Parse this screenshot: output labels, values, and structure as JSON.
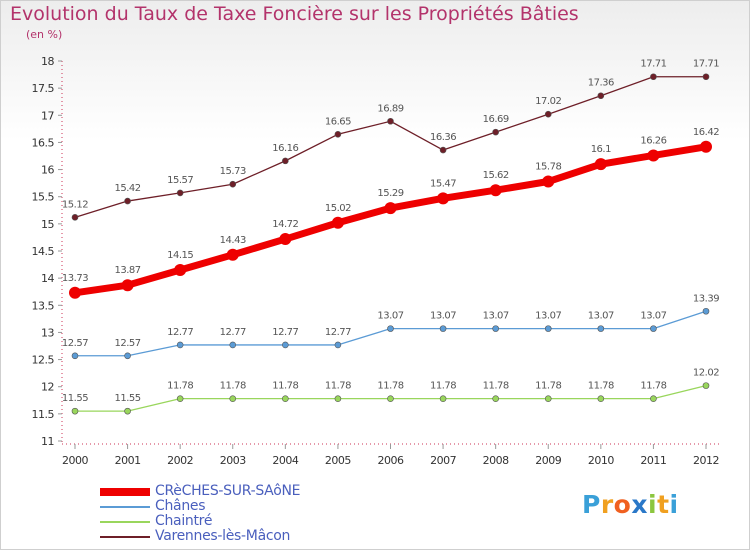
{
  "title": "Evolution du Taux de Taxe Foncière sur les Propriétés Bâties",
  "subtitle": "(en %)",
  "logo": {
    "text": "Proxiti",
    "letters": [
      "P",
      "r",
      "o",
      "x",
      "i",
      "t",
      "i"
    ],
    "colors": [
      "#3aa0d8",
      "#f0a020",
      "#f06020",
      "#2a78c8",
      "#8cc63f",
      "#f0a020",
      "#3aa0d8"
    ]
  },
  "chart_data": {
    "type": "line",
    "x": [
      "2000",
      "2001",
      "2002",
      "2003",
      "2004",
      "2005",
      "2006",
      "2007",
      "2008",
      "2009",
      "2010",
      "2011",
      "2012"
    ],
    "ylim": [
      11,
      18
    ],
    "yticks": [
      "11",
      "11.5",
      "12",
      "12.5",
      "13",
      "13.5",
      "14",
      "14.5",
      "15",
      "15.5",
      "16",
      "16.5",
      "17",
      "17.5",
      "18"
    ],
    "grid": false,
    "legend_position": "bottom-left",
    "series": [
      {
        "name": "Varennes-lès-Mâcon",
        "color": "#6e1f28",
        "values": [
          15.12,
          15.42,
          15.57,
          15.73,
          16.16,
          16.65,
          16.89,
          16.36,
          16.69,
          17.02,
          17.36,
          17.71,
          17.71
        ],
        "labels": [
          "15.12",
          "15.42",
          "15.57",
          "15.73",
          "16.16",
          "16.65",
          "16.89",
          "16.36",
          "16.69",
          "17.02",
          "17.36",
          "17.71",
          "17.71"
        ]
      },
      {
        "name": "CRèCHES-SUR-SAôNE",
        "color": "#ee0000",
        "values": [
          13.73,
          13.87,
          14.15,
          14.43,
          14.72,
          15.02,
          15.29,
          15.47,
          15.62,
          15.78,
          16.1,
          16.26,
          16.42
        ],
        "labels": [
          "13.73",
          "13.87",
          "14.15",
          "14.43",
          "14.72",
          "15.02",
          "15.29",
          "15.47",
          "15.62",
          "15.78",
          "16.1",
          "16.26",
          "16.42"
        ]
      },
      {
        "name": "Chânes",
        "color": "#5b9bd5",
        "values": [
          12.57,
          12.57,
          12.77,
          12.77,
          12.77,
          12.77,
          13.07,
          13.07,
          13.07,
          13.07,
          13.07,
          13.07,
          13.39
        ],
        "labels": [
          "12.57",
          "12.57",
          "12.77",
          "12.77",
          "12.77",
          "12.77",
          "13.07",
          "13.07",
          "13.07",
          "13.07",
          "13.07",
          "13.07",
          "13.39"
        ]
      },
      {
        "name": "Chaintré",
        "color": "#99d65c",
        "values": [
          11.55,
          11.55,
          11.78,
          11.78,
          11.78,
          11.78,
          11.78,
          11.78,
          11.78,
          11.78,
          11.78,
          11.78,
          12.02
        ],
        "labels": [
          "11.55",
          "11.55",
          "11.78",
          "11.78",
          "11.78",
          "11.78",
          "11.78",
          "11.78",
          "11.78",
          "11.78",
          "11.78",
          "11.78",
          "12.02"
        ]
      }
    ],
    "legend_order": [
      "CRèCHES-SUR-SAôNE",
      "Chânes",
      "Chaintré",
      "Varennes-lès-Mâcon"
    ]
  }
}
